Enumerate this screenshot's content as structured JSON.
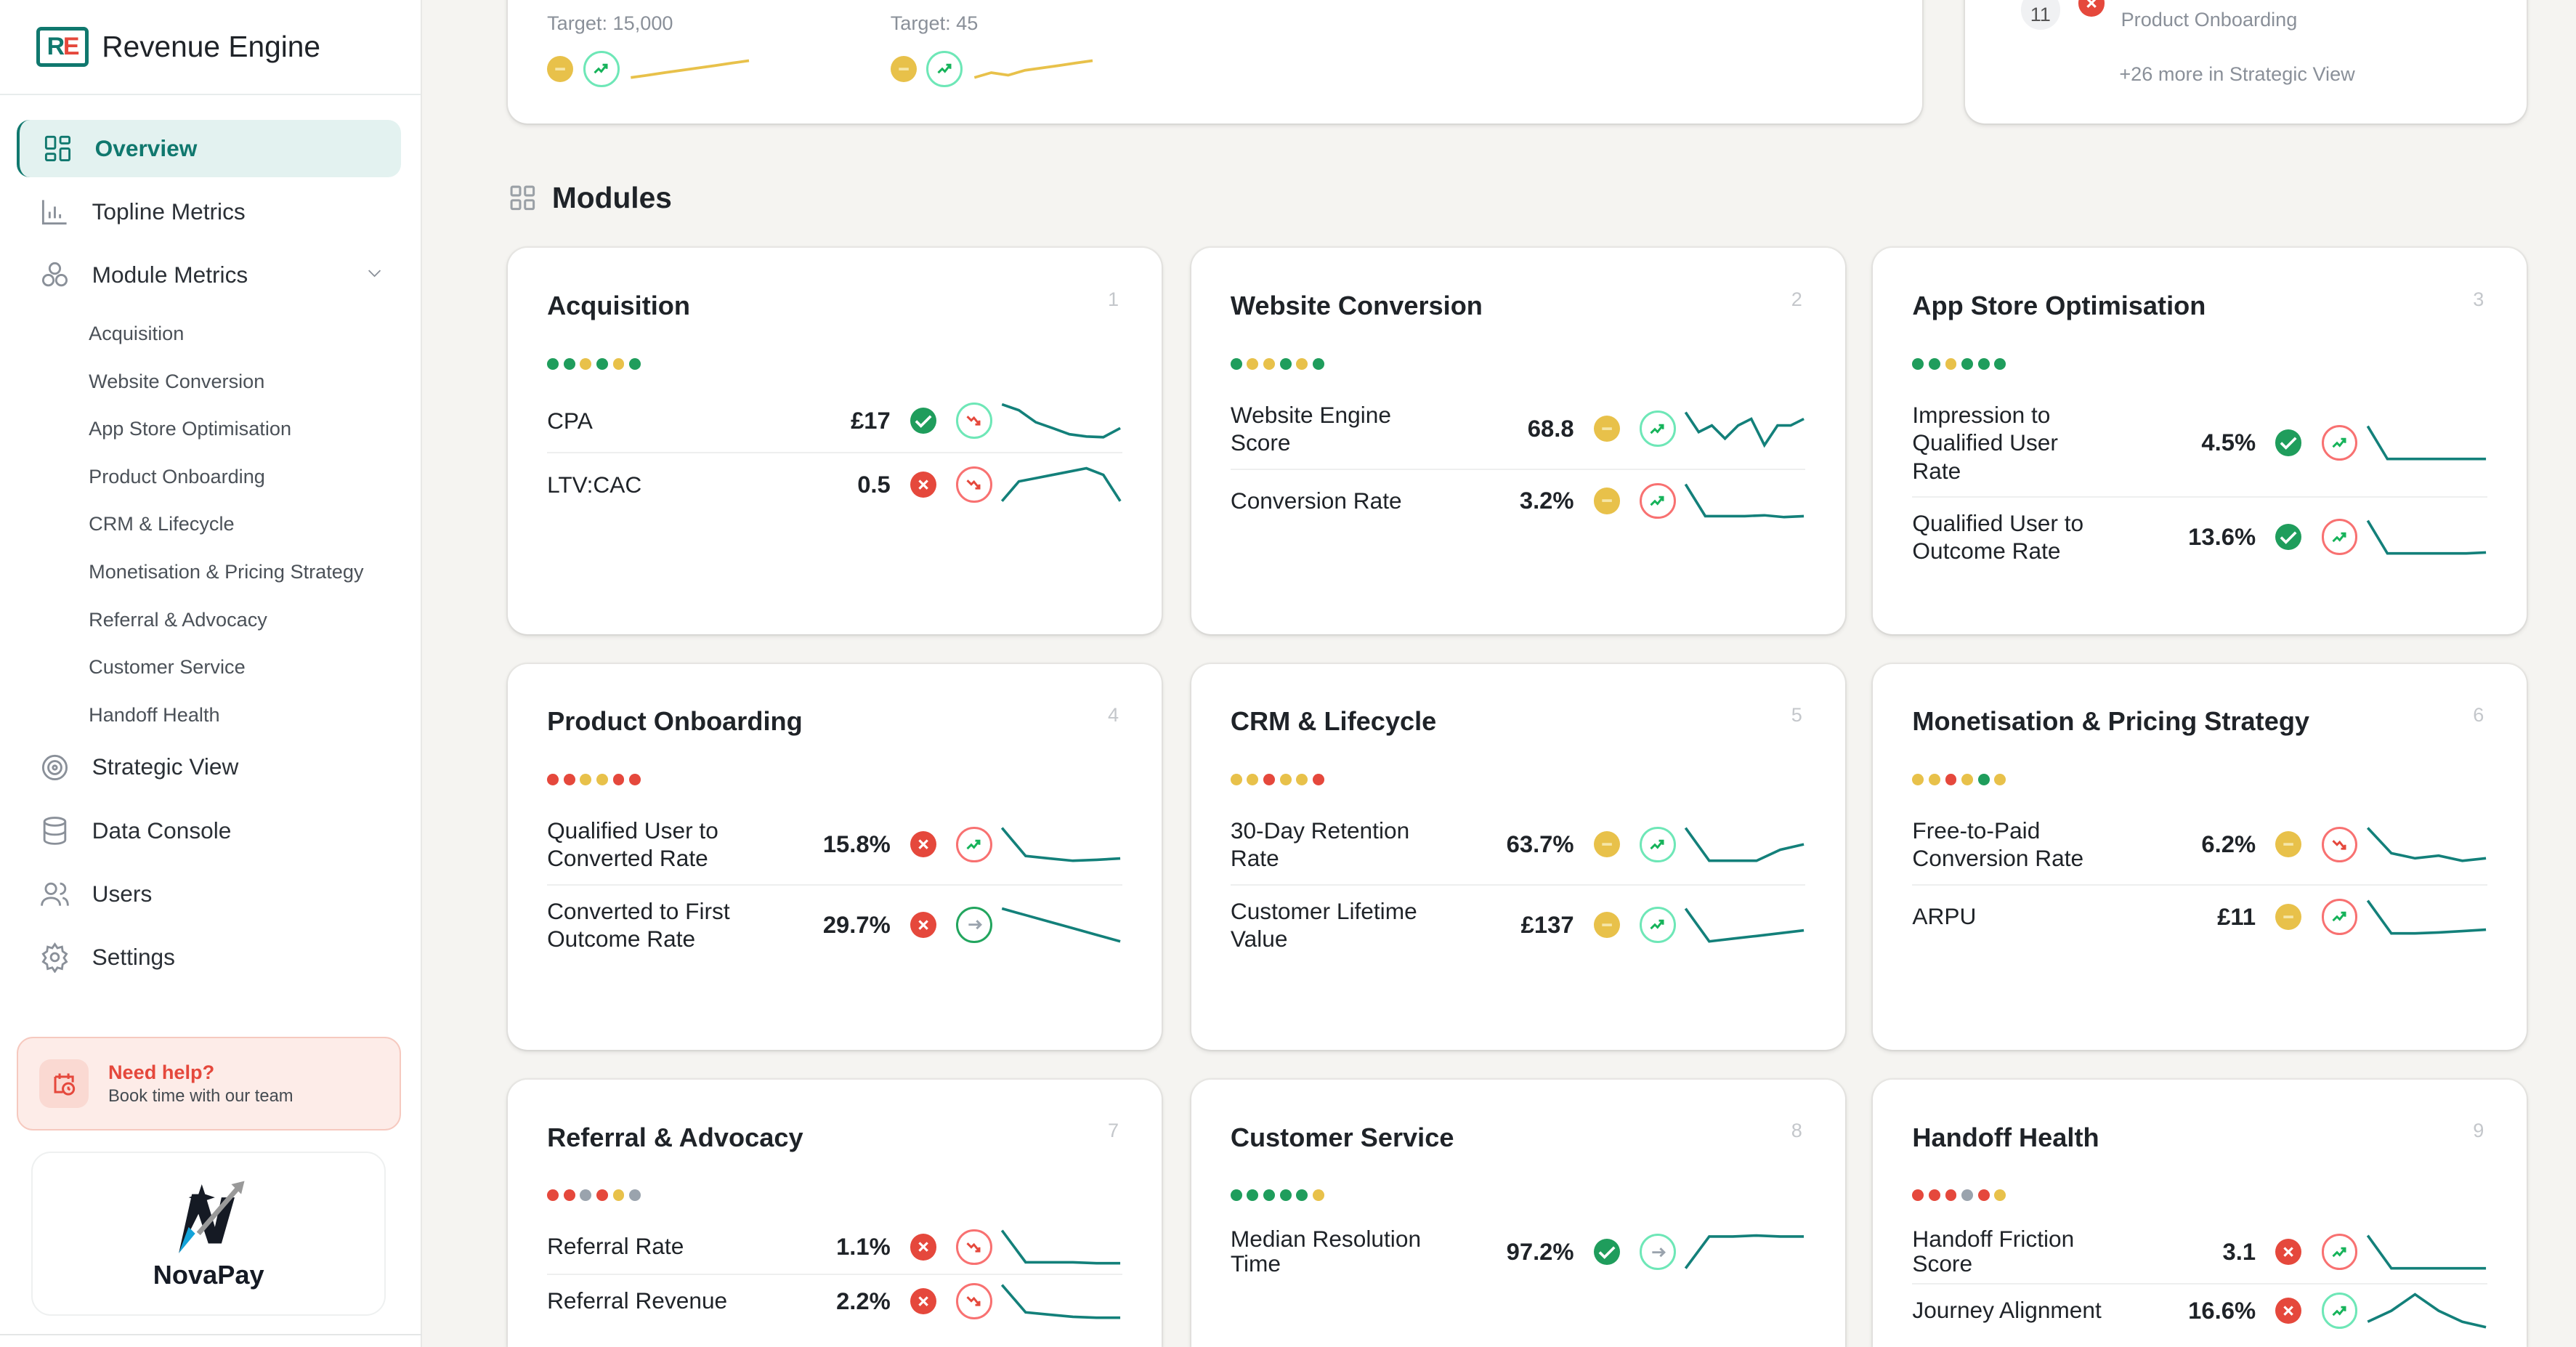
{
  "app": {
    "title": "Revenue Engine",
    "logo_letters": "RE"
  },
  "sidebar": {
    "items": [
      {
        "label": "Overview",
        "icon": "grid-icon",
        "active": true
      },
      {
        "label": "Topline Metrics",
        "icon": "bar-chart-icon"
      },
      {
        "label": "Module Metrics",
        "icon": "modules-icon",
        "expanded": true
      }
    ],
    "sub_items": [
      "Acquisition",
      "Website Conversion",
      "App Store Optimisation",
      "Product Onboarding",
      "CRM & Lifecycle",
      "Monetisation & Pricing Strategy",
      "Referral & Advocacy",
      "Customer Service",
      "Handoff Health"
    ],
    "items2": [
      {
        "label": "Strategic View",
        "icon": "target-icon"
      },
      {
        "label": "Data Console",
        "icon": "database-icon"
      },
      {
        "label": "Users",
        "icon": "users-icon"
      },
      {
        "label": "Settings",
        "icon": "gear-icon"
      }
    ],
    "help": {
      "title": "Need help?",
      "subtitle": "Book time with our team"
    },
    "client_logo": "NovaPay"
  },
  "top": {
    "targets": [
      {
        "label": "Target: 15,000",
        "status": "warn",
        "trend": {
          "ring": "good",
          "dir": "up"
        },
        "spark": [
          2,
          3,
          4,
          5,
          6,
          7,
          8,
          9
        ]
      },
      {
        "label": "Target: 45",
        "status": "warn",
        "trend": {
          "ring": "good",
          "dir": "up"
        },
        "spark": [
          3,
          5,
          4,
          6,
          7,
          8,
          9,
          10
        ]
      }
    ],
    "issues": {
      "rank": "11",
      "status": "bad",
      "module": "Product Onboarding",
      "more": "+26 more in Strategic View"
    }
  },
  "colors": {
    "good": "#1f9d5c",
    "warn": "#e8c14a",
    "bad": "#e5483c",
    "neutral": "#9aa3ad",
    "ring_good": "#6ee7b7",
    "ring_bad": "#f87171",
    "ring_dark": "#22a55e",
    "accent": "#10786e",
    "spark": "#13807a"
  },
  "modules": {
    "heading": "Modules",
    "cards": [
      {
        "num": "1",
        "title": "Acquisition",
        "dots": [
          "good",
          "good",
          "warn",
          "good",
          "warn",
          "good"
        ],
        "metrics": [
          {
            "label": "CPA",
            "value": "£17",
            "status": "good",
            "trend": {
              "ring": "good",
              "dir": "down"
            },
            "spark": [
              8,
              7,
              5,
              4,
              3,
              2.6,
              2.5,
              4
            ]
          },
          {
            "label": "LTV:CAC",
            "value": "0.5",
            "status": "bad",
            "trend": {
              "ring": "bad",
              "dir": "down"
            },
            "spark": [
              2,
              5,
              5.5,
              6,
              6.5,
              7,
              6,
              2
            ]
          }
        ]
      },
      {
        "num": "2",
        "title": "Website Conversion",
        "dots": [
          "good",
          "warn",
          "warn",
          "good",
          "warn",
          "good"
        ],
        "metrics": [
          {
            "label": "Website Engine Score",
            "value": "68.8",
            "status": "warn",
            "trend": {
              "ring": "good",
              "dir": "up"
            },
            "spark": [
              9,
              6,
              7,
              5,
              7,
              8,
              4,
              7,
              7,
              8
            ]
          },
          {
            "label": "Conversion Rate",
            "value": "3.2%",
            "status": "warn",
            "trend": {
              "ring": "bad",
              "dir": "up"
            },
            "spark": [
              9,
              2,
              2,
              2,
              2.2,
              1.8,
              2
            ]
          }
        ]
      },
      {
        "num": "3",
        "title": "App Store Optimisation",
        "dots": [
          "good",
          "good",
          "warn",
          "good",
          "good",
          "good"
        ],
        "metrics": [
          {
            "label": "Impression to Qualified User Rate",
            "value": "4.5%",
            "status": "good",
            "trend": {
              "ring": "bad",
              "dir": "up"
            },
            "spark": [
              9,
              2,
              2,
              2,
              2,
              2,
              2
            ]
          },
          {
            "label": "Qualified User to Outcome Rate",
            "value": "13.6%",
            "status": "good",
            "trend": {
              "ring": "bad",
              "dir": "up"
            },
            "spark": [
              9,
              2,
              2,
              2,
              2,
              2,
              2.2
            ]
          }
        ]
      },
      {
        "num": "4",
        "title": "Product Onboarding",
        "dots": [
          "bad",
          "bad",
          "warn",
          "warn",
          "bad",
          "bad"
        ],
        "metrics": [
          {
            "label": "Qualified User to Converted Rate",
            "value": "15.8%",
            "status": "bad",
            "trend": {
              "ring": "bad",
              "dir": "up"
            },
            "spark": [
              9,
              3,
              2.5,
              2,
              2.2,
              2.5
            ]
          },
          {
            "label": "Converted to First Outcome Rate",
            "value": "29.7%",
            "status": "bad",
            "trend": {
              "ring": "dark",
              "dir": "flat"
            },
            "spark": [
              8,
              7,
              6,
              5,
              4,
              3
            ]
          }
        ]
      },
      {
        "num": "5",
        "title": "CRM & Lifecycle",
        "dots": [
          "warn",
          "warn",
          "bad",
          "warn",
          "warn",
          "bad"
        ],
        "metrics": [
          {
            "label": "30-Day Retention Rate",
            "value": "63.7%",
            "status": "warn",
            "trend": {
              "ring": "good",
              "dir": "up"
            },
            "spark": [
              9,
              3,
              3,
              3,
              5,
              6
            ]
          },
          {
            "label": "Customer Lifetime Value",
            "value": "£137",
            "status": "warn",
            "trend": {
              "ring": "good",
              "dir": "up"
            },
            "spark": [
              9,
              3,
              3.5,
              4,
              4.5,
              5
            ]
          }
        ]
      },
      {
        "num": "6",
        "title": "Monetisation & Pricing Strategy",
        "dots": [
          "warn",
          "warn",
          "bad",
          "warn",
          "good",
          "warn"
        ],
        "metrics": [
          {
            "label": "Free-to-Paid Conversion Rate",
            "value": "6.2%",
            "status": "warn",
            "trend": {
              "ring": "bad",
              "dir": "down"
            },
            "spark": [
              9,
              4,
              3,
              3.5,
              2.5,
              3
            ]
          },
          {
            "label": "ARPU",
            "value": "£11",
            "status": "warn",
            "trend": {
              "ring": "bad",
              "dir": "up"
            },
            "spark": [
              9,
              2,
              2,
              2.2,
              2.5,
              2.8
            ]
          }
        ]
      },
      {
        "num": "7",
        "title": "Referral & Advocacy",
        "dots": [
          "bad",
          "bad",
          "neutral",
          "bad",
          "warn",
          "neutral"
        ],
        "metrics": [
          {
            "label": "Referral Rate",
            "value": "1.1%",
            "status": "bad",
            "trend": {
              "ring": "bad",
              "dir": "down"
            },
            "spark": [
              9,
              2,
              2,
              2,
              1.8,
              1.8
            ]
          },
          {
            "label": "Referral Revenue",
            "value": "2.2%",
            "status": "bad",
            "trend": {
              "ring": "bad",
              "dir": "down"
            },
            "spark": [
              9,
              3,
              2.5,
              2,
              1.8,
              1.8
            ]
          }
        ]
      },
      {
        "num": "8",
        "title": "Customer Service",
        "dots": [
          "good",
          "good",
          "good",
          "good",
          "good",
          "warn"
        ],
        "metrics": [
          {
            "label": "Median Resolution Time",
            "value": "97.2%",
            "status": "good",
            "trend": {
              "ring": "good",
              "dir": "flat"
            },
            "spark": [
              1,
              8,
              8,
              8.2,
              8,
              8
            ]
          }
        ]
      },
      {
        "num": "9",
        "title": "Handoff Health",
        "dots": [
          "bad",
          "bad",
          "bad",
          "neutral",
          "bad",
          "warn"
        ],
        "metrics": [
          {
            "label": "Handoff Friction Score",
            "value": "3.1",
            "status": "bad",
            "trend": {
              "ring": "bad",
              "dir": "up"
            },
            "spark": [
              9,
              2,
              2,
              2,
              2,
              2
            ]
          },
          {
            "label": "Journey Alignment",
            "value": "16.6%",
            "status": "bad",
            "trend": {
              "ring": "good",
              "dir": "up"
            },
            "spark": [
              3,
              5,
              8,
              5,
              3,
              2
            ]
          }
        ]
      }
    ]
  }
}
